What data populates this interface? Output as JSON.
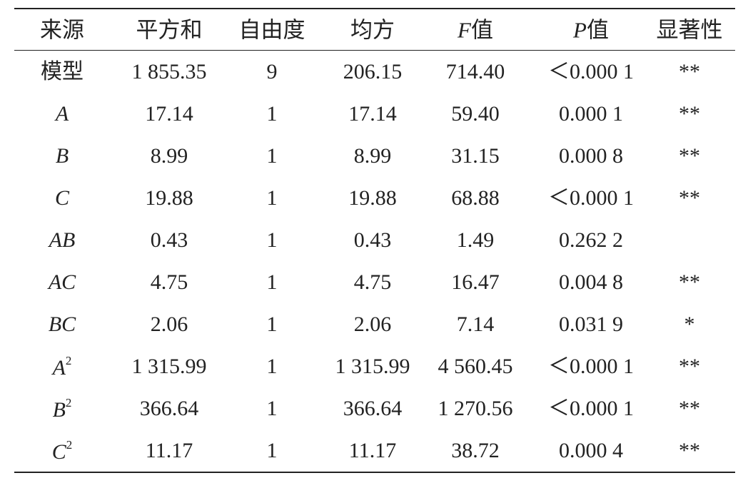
{
  "table": {
    "header": [
      {
        "text": "来源"
      },
      {
        "text": "平方和"
      },
      {
        "text": "自由度"
      },
      {
        "text": "均方"
      },
      {
        "italic": "F",
        "text": "值"
      },
      {
        "italic": "P",
        "text": "值"
      },
      {
        "text": "显著性"
      }
    ],
    "rows": [
      {
        "source": "模型",
        "italic": false,
        "cells": [
          "1 855.35",
          "9",
          "206.15",
          "714.40",
          "＜0.000 1",
          "**"
        ]
      },
      {
        "source": "A",
        "italic": true,
        "cells": [
          "17.14",
          "1",
          "17.14",
          "59.40",
          "0.000 1",
          "**"
        ]
      },
      {
        "source": "B",
        "italic": true,
        "cells": [
          "8.99",
          "1",
          "8.99",
          "31.15",
          "0.000 8",
          "**"
        ]
      },
      {
        "source": "C",
        "italic": true,
        "cells": [
          "19.88",
          "1",
          "19.88",
          "68.88",
          "＜0.000 1",
          "**"
        ]
      },
      {
        "source": "AB",
        "italic": true,
        "cells": [
          "0.43",
          "1",
          "0.43",
          "1.49",
          "0.262 2",
          null
        ]
      },
      {
        "source": "AC",
        "italic": true,
        "cells": [
          "4.75",
          "1",
          "4.75",
          "16.47",
          "0.004 8",
          "**"
        ]
      },
      {
        "source": "BC",
        "italic": true,
        "cells": [
          "2.06",
          "1",
          "2.06",
          "7.14",
          "0.031 9",
          "*"
        ]
      },
      {
        "source": "A",
        "power": "2",
        "italic": true,
        "cells": [
          "1 315.99",
          "1",
          "1 315.99",
          "4 560.45",
          "＜0.000 1",
          "**"
        ]
      },
      {
        "source": "B",
        "power": "2",
        "italic": true,
        "cells": [
          "366.64",
          "1",
          "366.64",
          "1 270.56",
          "＜0.000 1",
          "**"
        ]
      },
      {
        "source": "C",
        "power": "2",
        "italic": true,
        "cells": [
          "11.17",
          "1",
          "11.17",
          "38.72",
          "0.000 4",
          "**"
        ]
      }
    ]
  }
}
